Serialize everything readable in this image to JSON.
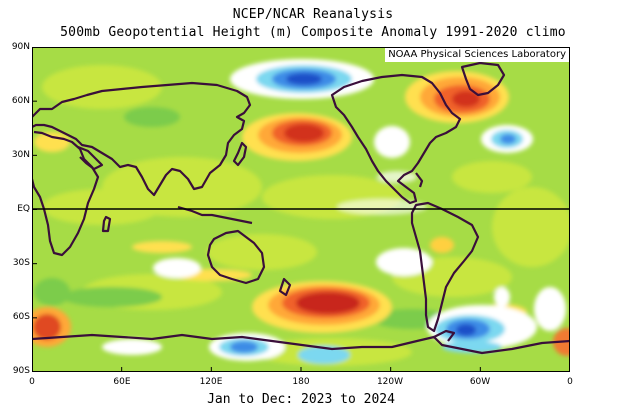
{
  "title_line1": "NCEP/NCAR Reanalysis",
  "title_line2": "500mb Geopotential Height (m) Composite Anomaly 1991-2020 climo",
  "credit": "NOAA Physical Sciences Laboratory",
  "date_range": "Jan to Dec: 2023 to 2024",
  "lat_labels": [
    "90N",
    "60N",
    "30N",
    "EQ",
    "30S",
    "60S",
    "90S"
  ],
  "lon_labels": [
    "0",
    "60E",
    "120E",
    "180",
    "120W",
    "60W",
    "0"
  ],
  "colors": {
    "coast": "#3a0f3a",
    "background": "#ffffff",
    "equator": "#000000"
  },
  "anomaly_features": [
    {
      "name": "north-pacific-high",
      "lon": 180,
      "lat": 40,
      "sign": "positive",
      "level": "strong"
    },
    {
      "name": "south-pacific-high",
      "lon": 190,
      "lat": -52,
      "sign": "positive",
      "level": "strong"
    },
    {
      "name": "greenland-high",
      "lon": 290,
      "lat": 60,
      "sign": "positive",
      "level": "strong"
    },
    {
      "name": "south-atlantic-high",
      "lon": 10,
      "lat": -62,
      "sign": "positive",
      "level": "strong"
    },
    {
      "name": "alaska-low",
      "lon": 185,
      "lat": 70,
      "sign": "negative",
      "level": "strong"
    },
    {
      "name": "weddell-low",
      "lon": 295,
      "lat": -65,
      "sign": "negative",
      "level": "strong"
    },
    {
      "name": "ross-low",
      "lon": 140,
      "lat": -70,
      "sign": "negative",
      "level": "strong"
    },
    {
      "name": "north-atlantic-low",
      "lon": 318,
      "lat": 42,
      "sign": "negative",
      "level": "moderate"
    }
  ]
}
